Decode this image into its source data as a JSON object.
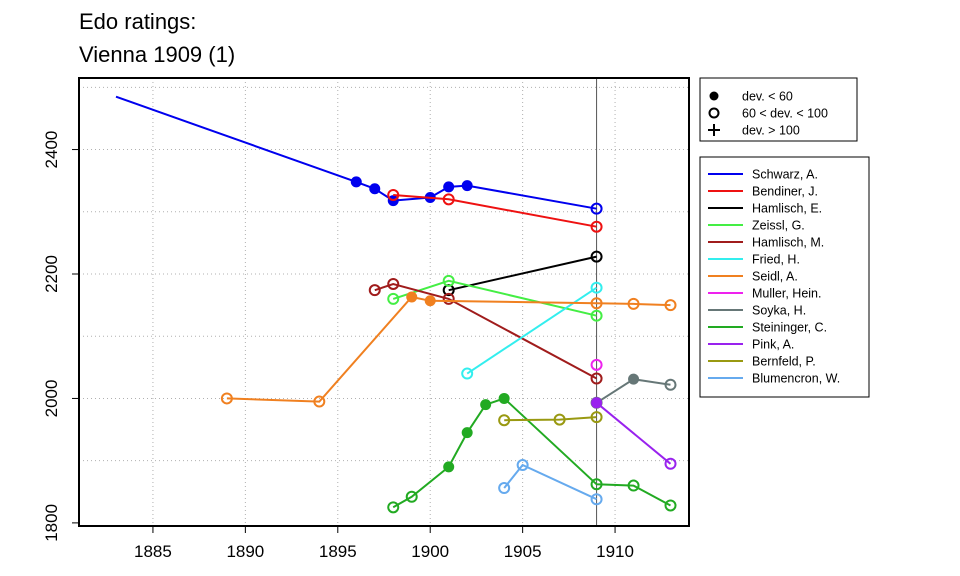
{
  "chart_data": {
    "type": "line",
    "title_lines": [
      "Edo ratings:",
      "Vienna 1909 (1)"
    ],
    "xlabel": "",
    "ylabel": "",
    "xlim": [
      1881,
      1914
    ],
    "ylim": [
      1795,
      2515
    ],
    "x_ticks": [
      1885,
      1890,
      1895,
      1900,
      1905,
      1910
    ],
    "y_ticks": [
      1800,
      2000,
      2200,
      2400
    ],
    "x_grid": [
      1885,
      1890,
      1895,
      1900,
      1905,
      1910
    ],
    "y_grid": [
      1900,
      2000,
      2100,
      2200,
      2300,
      2400,
      2500
    ],
    "grid": true,
    "vline_x": 1909,
    "marker_legend": [
      {
        "marker": "filled",
        "label": "dev. < 60"
      },
      {
        "marker": "open",
        "label": "60 < dev. < 100"
      },
      {
        "marker": "plus",
        "label": "dev. > 100"
      }
    ],
    "series": [
      {
        "name": "Schwarz, A.",
        "color": "#0000ee",
        "points": [
          [
            1883,
            2485,
            "none"
          ],
          [
            1896,
            2348,
            "filled"
          ],
          [
            1897,
            2337,
            "filled"
          ],
          [
            1898,
            2318,
            "filled"
          ],
          [
            1900,
            2323,
            "filled"
          ],
          [
            1901,
            2340,
            "filled"
          ],
          [
            1902,
            2342,
            "filled"
          ],
          [
            1909,
            2305,
            "open"
          ]
        ]
      },
      {
        "name": "Bendiner, J.",
        "color": "#ee1111",
        "points": [
          [
            1898,
            2327,
            "open"
          ],
          [
            1901,
            2320,
            "open"
          ],
          [
            1909,
            2276,
            "open"
          ]
        ]
      },
      {
        "name": "Hamlisch, E.",
        "color": "#000000",
        "points": [
          [
            1901,
            2174,
            "open"
          ],
          [
            1909,
            2228,
            "open"
          ]
        ]
      },
      {
        "name": "Zeissl, G.",
        "color": "#44ee44",
        "points": [
          [
            1898,
            2160,
            "open"
          ],
          [
            1901,
            2189,
            "open"
          ],
          [
            1909,
            2133,
            "open"
          ]
        ]
      },
      {
        "name": "Hamlisch, M.",
        "color": "#a01c1c",
        "points": [
          [
            1897,
            2174,
            "open"
          ],
          [
            1898,
            2184,
            "open"
          ],
          [
            1901,
            2160,
            "open"
          ],
          [
            1909,
            2032,
            "open"
          ]
        ]
      },
      {
        "name": "Fried, H.",
        "color": "#33eeee",
        "points": [
          [
            1902,
            2040,
            "open"
          ],
          [
            1909,
            2178,
            "open"
          ]
        ]
      },
      {
        "name": "Seidl, A.",
        "color": "#f08020",
        "points": [
          [
            1889,
            2000,
            "open"
          ],
          [
            1894,
            1995,
            "open"
          ],
          [
            1899,
            2163,
            "filled"
          ],
          [
            1900,
            2157,
            "filled"
          ],
          [
            1909,
            2153,
            "open"
          ],
          [
            1911,
            2152,
            "open"
          ],
          [
            1913,
            2150,
            "open"
          ]
        ]
      },
      {
        "name": "Muller, Hein.",
        "color": "#ee22ee",
        "points": [
          [
            1909,
            2054,
            "open"
          ]
        ]
      },
      {
        "name": "Soyka, H.",
        "color": "#667777",
        "points": [
          [
            1909,
            1993,
            "open"
          ],
          [
            1911,
            2031,
            "filled"
          ],
          [
            1913,
            2022,
            "open"
          ]
        ]
      },
      {
        "name": "Steininger, C.",
        "color": "#22aa22",
        "points": [
          [
            1898,
            1825,
            "open"
          ],
          [
            1899,
            1842,
            "open"
          ],
          [
            1901,
            1890,
            "filled"
          ],
          [
            1902,
            1945,
            "filled"
          ],
          [
            1903,
            1990,
            "filled"
          ],
          [
            1904,
            2000,
            "filled"
          ],
          [
            1909,
            1862,
            "open"
          ],
          [
            1911,
            1860,
            "open"
          ],
          [
            1913,
            1828,
            "open"
          ]
        ]
      },
      {
        "name": "Pink, A.",
        "color": "#9922ee",
        "points": [
          [
            1909,
            1993,
            "filled"
          ],
          [
            1913,
            1895,
            "open"
          ]
        ]
      },
      {
        "name": "Bernfeld, P.",
        "color": "#999911",
        "points": [
          [
            1904,
            1965,
            "open"
          ],
          [
            1907,
            1966,
            "open"
          ],
          [
            1909,
            1970,
            "open"
          ]
        ]
      },
      {
        "name": "Blumencron, W.",
        "color": "#66aaee",
        "points": [
          [
            1904,
            1856,
            "open"
          ],
          [
            1905,
            1893,
            "open"
          ],
          [
            1909,
            1838,
            "open"
          ]
        ]
      }
    ]
  }
}
